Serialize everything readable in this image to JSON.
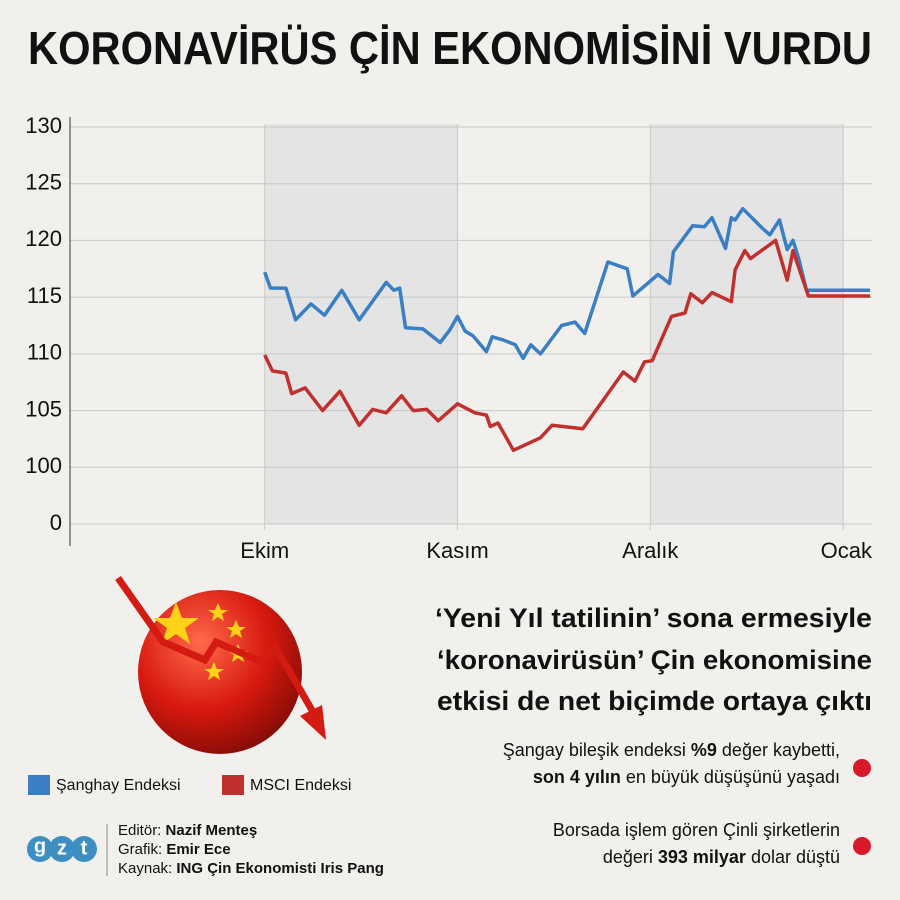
{
  "title": "KORONAVİRÜS ÇİN EKONOMİSİNİ VURDU",
  "chart_data": {
    "type": "line",
    "ylim": [
      0,
      130
    ],
    "yticks": [
      0,
      100,
      105,
      110,
      115,
      120,
      125,
      130
    ],
    "xlim": [
      -1.01,
      3.15
    ],
    "xticks": [
      {
        "value": 0,
        "label": "Ekim"
      },
      {
        "value": 1,
        "label": "Kasım"
      },
      {
        "value": 2,
        "label": "Aralık"
      },
      {
        "value": 3,
        "label": "Ocak"
      }
    ],
    "grid": true,
    "series": [
      {
        "name": "Şanghay Endeksi",
        "color": "#3a7fc4",
        "x": [
          0,
          0.03,
          0.07,
          0.11,
          0.16,
          0.24,
          0.31,
          0.4,
          0.49,
          0.63,
          0.67,
          0.7,
          0.73,
          0.82,
          0.91,
          0.96,
          1.0,
          1.04,
          1.08,
          1.15,
          1.18,
          1.24,
          1.3,
          1.34,
          1.38,
          1.43,
          1.54,
          1.61,
          1.66,
          1.78,
          1.88,
          1.91,
          2.04,
          2.1,
          2.12,
          2.22,
          2.28,
          2.32,
          2.39,
          2.42,
          2.44,
          2.48,
          2.58,
          2.62,
          2.67,
          2.71,
          2.74,
          2.77,
          2.81,
          2.99,
          3.14
        ],
        "values": [
          117.2,
          115.8,
          115.8,
          115.8,
          113.0,
          114.4,
          113.4,
          115.6,
          113.0,
          116.3,
          115.6,
          115.8,
          112.3,
          112.2,
          111.0,
          112.1,
          113.3,
          112.0,
          111.6,
          110.2,
          111.5,
          111.2,
          110.8,
          109.6,
          110.8,
          110.0,
          112.5,
          112.8,
          111.8,
          118.1,
          117.5,
          115.1,
          117.0,
          116.2,
          119.0,
          121.3,
          121.2,
          122.0,
          119.3,
          122.0,
          121.8,
          122.8,
          121.1,
          120.5,
          121.8,
          119.2,
          120.0,
          118.4,
          115.6,
          115.6,
          115.6
        ]
      },
      {
        "name": "MSCI Endeksi",
        "color": "#c0302e",
        "x": [
          0,
          0.04,
          0.11,
          0.14,
          0.21,
          0.3,
          0.39,
          0.49,
          0.56,
          0.63,
          0.71,
          0.77,
          0.84,
          0.9,
          1.0,
          1.09,
          1.15,
          1.17,
          1.21,
          1.29,
          1.43,
          1.49,
          1.65,
          1.86,
          1.92,
          1.97,
          2.01,
          2.11,
          2.18,
          2.21,
          2.27,
          2.32,
          2.42,
          2.44,
          2.49,
          2.52,
          2.65,
          2.71,
          2.74,
          2.82,
          2.99,
          3.14
        ],
        "values": [
          109.9,
          108.5,
          108.3,
          106.5,
          107.0,
          105.0,
          106.7,
          103.7,
          105.1,
          104.8,
          106.3,
          105.0,
          105.1,
          104.1,
          105.6,
          104.8,
          104.6,
          103.6,
          103.9,
          101.5,
          102.6,
          103.7,
          103.4,
          108.4,
          107.6,
          109.3,
          109.4,
          113.3,
          113.6,
          115.3,
          114.5,
          115.4,
          114.6,
          117.4,
          119.1,
          118.4,
          120.0,
          116.5,
          119.1,
          115.1,
          115.1,
          115.1
        ]
      }
    ]
  },
  "headline": [
    "‘Yeni Yıl tatilinin’ sona ermesiyle",
    "‘koronavirüsün’ Çin ekonomisine",
    "etkisi de net biçimde ortaya çıktı"
  ],
  "bullets": [
    {
      "line1": [
        "Şangay bileşik endeksi ",
        "%9",
        " değer kaybetti,"
      ],
      "line2": [
        "son 4 yılın",
        " en büyük düşüşünü yaşadı"
      ]
    },
    {
      "line1": [
        "Borsada işlem gören Çinli şirketlerin"
      ],
      "line2": [
        "değeri ",
        "393 milyar",
        " dolar düştü"
      ]
    }
  ],
  "credits": [
    [
      "Editör: ",
      "Nazif Menteş"
    ],
    [
      "Grafik: ",
      "Emir Ece"
    ],
    [
      "Kaynak: ",
      "ING Çin Ekonomisti Iris Pang"
    ]
  ],
  "logo": [
    "g",
    "z",
    "t"
  ]
}
